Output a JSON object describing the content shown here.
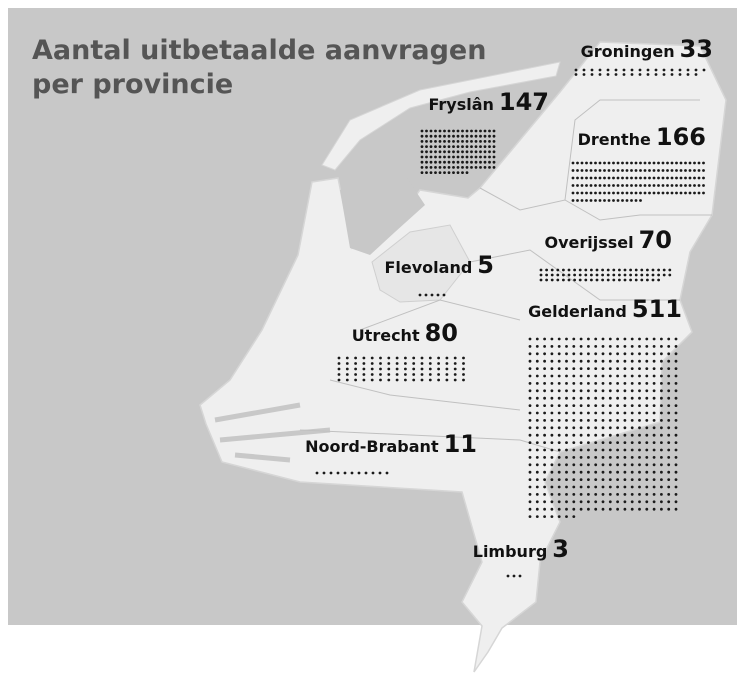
{
  "title": "Aantal uitbetaalde aanvragen per provincie",
  "provinces": [
    {
      "name": "Groningen",
      "value": 33
    },
    {
      "name": "Fryslân",
      "value": 147
    },
    {
      "name": "Drenthe",
      "value": 166
    },
    {
      "name": "Overijssel",
      "value": 70
    },
    {
      "name": "Flevoland",
      "value": 5
    },
    {
      "name": "Utrecht",
      "value": 80
    },
    {
      "name": "Gelderland",
      "value": 511
    },
    {
      "name": "Noord-Brabant",
      "value": 11
    },
    {
      "name": "Limburg",
      "value": 3
    }
  ]
}
